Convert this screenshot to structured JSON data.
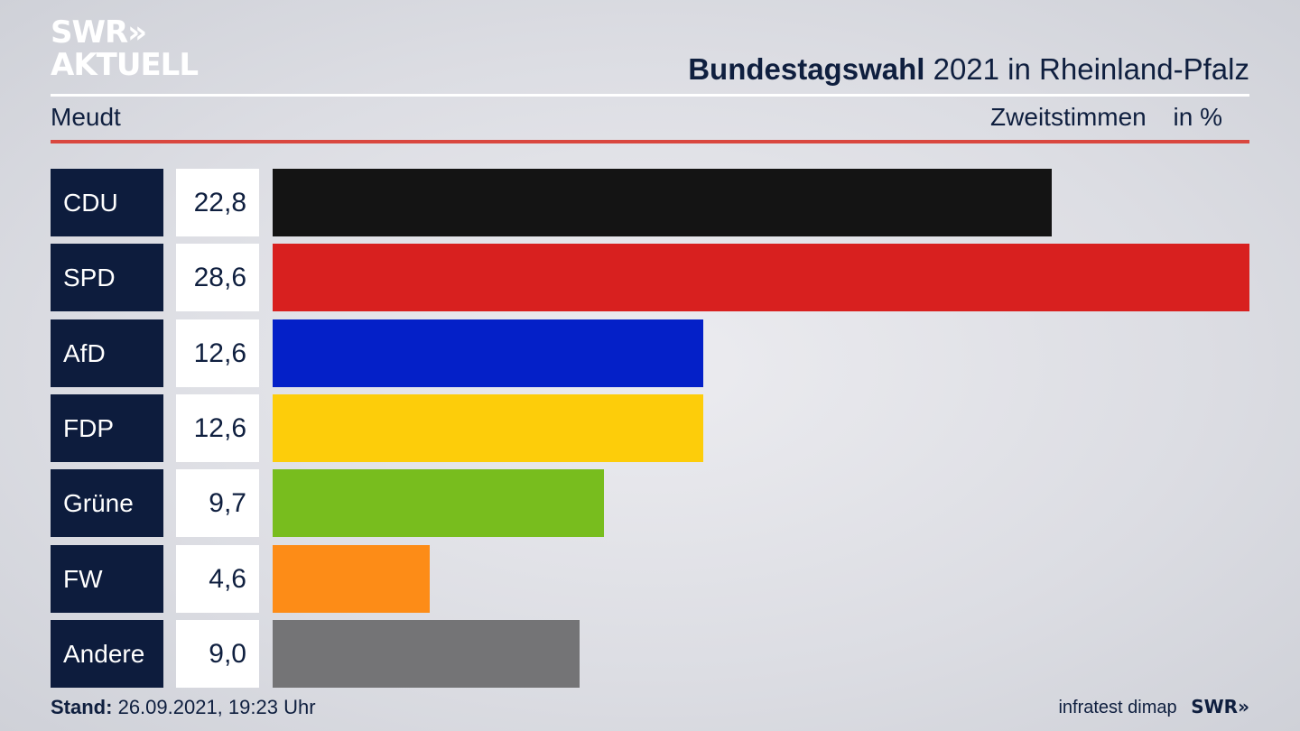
{
  "logo": {
    "line1": "SWR»",
    "line2": "AKTUELL"
  },
  "header": {
    "title_bold": "Bundestagswahl",
    "title_rest": "2021 in Rheinland-Pfalz",
    "location": "Meudt",
    "measure": "Zweitstimmen",
    "unit": "in %"
  },
  "chart_data": {
    "type": "bar",
    "orientation": "horizontal",
    "categories": [
      "CDU",
      "SPD",
      "AfD",
      "FDP",
      "Grüne",
      "FW",
      "Andere"
    ],
    "values": [
      22.8,
      28.6,
      12.6,
      12.6,
      9.7,
      4.6,
      9.0
    ],
    "value_labels": [
      "22,8",
      "28,6",
      "12,6",
      "12,6",
      "9,7",
      "4,6",
      "9,0"
    ],
    "colors": [
      "#141414",
      "#d8201f",
      "#0420c8",
      "#fdcd0a",
      "#78bd1e",
      "#fd8c17",
      "#747476"
    ],
    "xlim": [
      0,
      28.6
    ]
  },
  "footer": {
    "stand_label": "Stand:",
    "stand_value": "26.09.2021, 19:23 Uhr",
    "source": "infratest dimap",
    "brand": "SWR»"
  }
}
